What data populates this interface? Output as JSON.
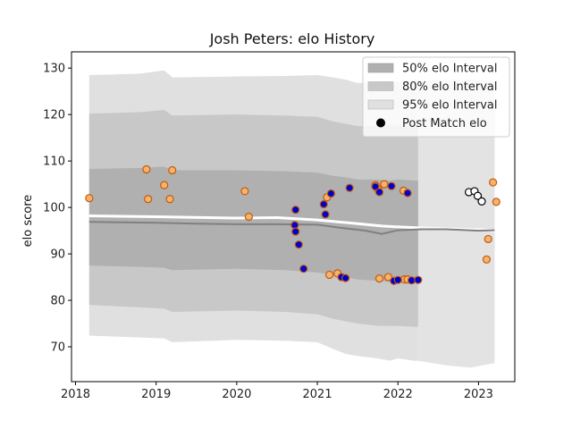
{
  "chart_data": {
    "type": "scatter",
    "title": "Josh Peters: elo History",
    "xlabel": "",
    "ylabel": "elo score",
    "xlim": [
      2017.95,
      2023.45
    ],
    "ylim": [
      62.5,
      133.5
    ],
    "xticks": [
      2018,
      2019,
      2020,
      2021,
      2022,
      2023
    ],
    "yticks": [
      70,
      80,
      90,
      100,
      110,
      120,
      130
    ],
    "legend": {
      "position": "top-right",
      "entries": [
        {
          "label": "50% elo Interval",
          "color": "#b0b0b0"
        },
        {
          "label": "80% elo Interval",
          "color": "#c8c8c8"
        },
        {
          "label": "95% elo Interval",
          "color": "#e0e0e0"
        },
        {
          "label": "Post Match elo",
          "color": "#000000"
        }
      ]
    },
    "bands": {
      "x": [
        2018.17,
        2018.8,
        2019.1,
        2019.2,
        2020.0,
        2020.6,
        2021.0,
        2021.2,
        2021.35,
        2021.5,
        2021.75,
        2021.9,
        2022.0,
        2022.2,
        2022.25
      ],
      "p95_upper": [
        128.5,
        128.8,
        129.5,
        128.0,
        128.2,
        128.3,
        128.5,
        128.0,
        127.5,
        126.8,
        127.0,
        127.2,
        127.0,
        127.5,
        127.5
      ],
      "p95_lower": [
        72.4,
        72.0,
        71.8,
        71.0,
        71.5,
        71.3,
        71.0,
        69.5,
        68.5,
        68.0,
        67.5,
        67.0,
        67.5,
        67.0,
        67.0
      ],
      "p80_upper": [
        120.2,
        120.5,
        121.0,
        119.8,
        120.0,
        119.8,
        119.5,
        118.5,
        118.0,
        117.5,
        117.5,
        117.8,
        117.5,
        117.8,
        117.8
      ],
      "p80_lower": [
        79.0,
        78.5,
        78.2,
        77.5,
        77.8,
        77.5,
        77.0,
        76.0,
        75.5,
        75.0,
        74.5,
        74.5,
        74.5,
        74.3,
        74.3
      ],
      "p50_upper": [
        108.3,
        108.5,
        108.8,
        108.0,
        108.0,
        107.8,
        107.5,
        106.8,
        106.5,
        106.0,
        106.0,
        105.8,
        106.0,
        105.8,
        105.8
      ],
      "p50_lower": [
        87.5,
        87.2,
        87.0,
        86.5,
        86.8,
        86.5,
        86.0,
        85.5,
        85.0,
        84.5,
        84.2,
        84.0,
        84.2,
        84.0,
        84.0
      ]
    },
    "bands_light": {
      "x": [
        2022.25,
        2022.6,
        2022.9,
        2023.2
      ],
      "p95_upper": [
        127.3,
        127.5,
        127.5,
        127.0
      ],
      "p95_lower": [
        67.0,
        66.0,
        65.5,
        66.5
      ]
    },
    "median_line": {
      "x": [
        2018.17,
        2019.0,
        2019.5,
        2020.0,
        2020.5,
        2021.0,
        2021.3,
        2021.6,
        2021.8,
        2022.0,
        2022.3,
        2022.6,
        2023.0,
        2023.2
      ],
      "y": [
        96.9,
        96.7,
        96.5,
        96.4,
        96.4,
        96.3,
        95.6,
        95.0,
        94.3,
        95.1,
        95.3,
        95.3,
        95.0,
        95.1
      ]
    },
    "expected_line": {
      "x": [
        2018.17,
        2019.0,
        2020.0,
        2020.5,
        2021.0,
        2021.5,
        2021.8,
        2022.0,
        2022.3,
        2022.6,
        2023.0,
        2023.2
      ],
      "y": [
        98.2,
        98.0,
        97.7,
        97.8,
        97.3,
        96.5,
        96.0,
        95.8,
        95.6,
        95.4,
        95.2,
        95.0
      ]
    },
    "orange_points": {
      "x": [
        2018.17,
        2018.88,
        2018.9,
        2019.1,
        2019.17,
        2019.2,
        2020.1,
        2020.15,
        2021.12,
        2021.15,
        2021.25,
        2021.72,
        2021.75,
        2021.77,
        2021.83,
        2021.88,
        2022.07,
        2022.08,
        2022.12,
        2023.1,
        2023.12,
        2023.18,
        2023.22
      ],
      "y": [
        102.0,
        108.2,
        101.8,
        104.8,
        101.8,
        108.0,
        103.5,
        98.0,
        102.2,
        85.5,
        85.8,
        104.8,
        104.0,
        84.7,
        105.0,
        85.0,
        103.6,
        84.5,
        84.5,
        88.8,
        93.2,
        105.4,
        101.2
      ]
    },
    "blue_points": {
      "x": [
        2020.73,
        2020.72,
        2020.73,
        2020.77,
        2020.83,
        2021.08,
        2021.1,
        2021.17,
        2021.3,
        2021.35,
        2021.4,
        2021.72,
        2021.77,
        2021.92,
        2021.95,
        2022.0,
        2022.12,
        2022.17,
        2022.25
      ],
      "y": [
        99.5,
        96.2,
        94.8,
        92.0,
        86.8,
        100.7,
        98.5,
        103.0,
        85.0,
        84.8,
        104.2,
        104.5,
        103.3,
        104.6,
        84.2,
        84.4,
        103.1,
        84.3,
        84.4
      ]
    },
    "post_match_points": {
      "x": [
        2022.88,
        2022.95,
        2022.99,
        2023.04
      ],
      "y": [
        103.3,
        103.5,
        102.5,
        101.3
      ]
    },
    "colors": {
      "p50": "#b0b0b0",
      "p80": "#c8c8c8",
      "p95": "#e0e0e0",
      "median_line": "#808080",
      "expected_line": "#ffffff",
      "orange_fill": "#f5b36b",
      "orange_edge": "#c25a0e",
      "blue_fill": "#0000cc",
      "blue_edge": "#c25a0e",
      "post_match_fill": "#ffffff",
      "post_match_edge": "#000000"
    }
  }
}
